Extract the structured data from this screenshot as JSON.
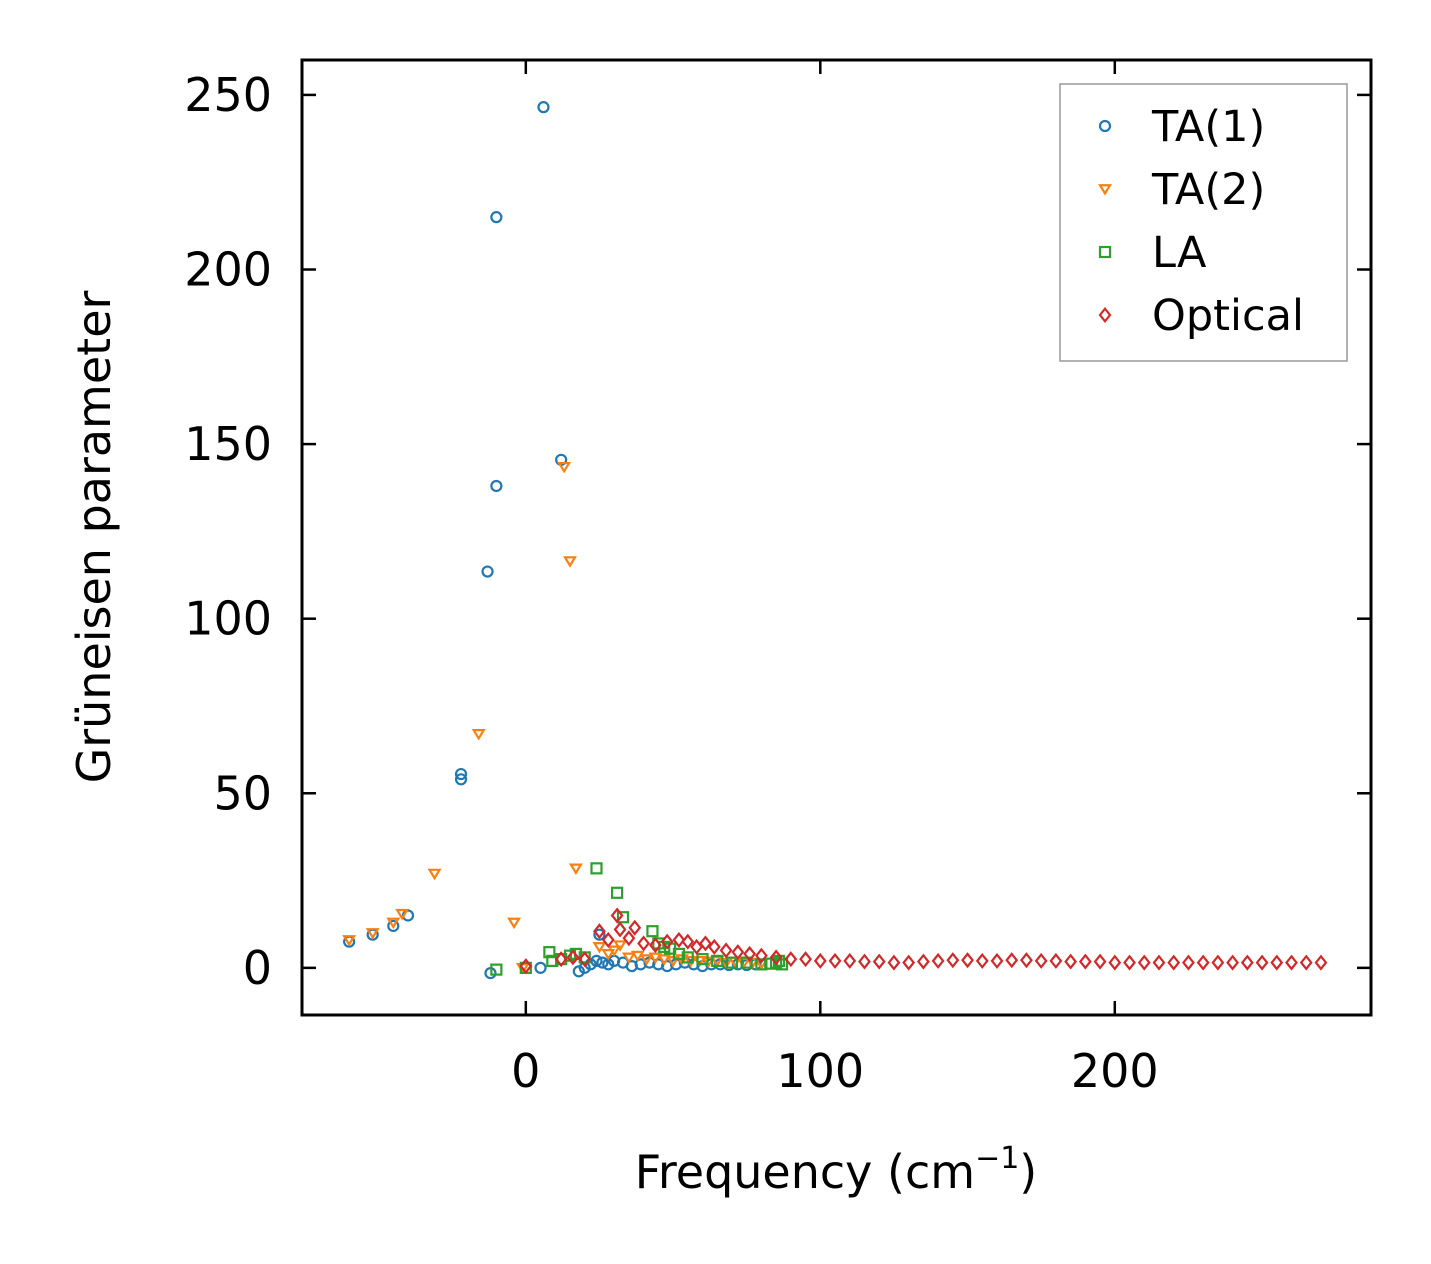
{
  "chart_data": {
    "type": "scatter",
    "xlabel": "Frequency (cm",
    "xlabel_exponent": "−1",
    "xlabel_close": ")",
    "ylabel": "Grüneisen parameter",
    "xlim": [
      -76,
      287
    ],
    "ylim": [
      -13.5,
      260
    ],
    "xticks": [
      0,
      100,
      200
    ],
    "yticks": [
      0,
      50,
      100,
      150,
      200,
      250
    ],
    "legend_position": "top-right",
    "grid": false,
    "series": [
      {
        "name": "TA(1)",
        "color": "#1f77b4",
        "marker": "circle",
        "points": [
          [
            -60,
            7.5
          ],
          [
            -52,
            9.5
          ],
          [
            -45,
            12
          ],
          [
            -40,
            15
          ],
          [
            -22,
            54
          ],
          [
            -22,
            55.5
          ],
          [
            -13,
            113.5
          ],
          [
            -10,
            138
          ],
          [
            -10,
            215
          ],
          [
            5,
            0
          ],
          [
            6,
            246.5
          ],
          [
            12,
            145.5
          ],
          [
            25,
            9.5
          ],
          [
            -12,
            -1.5
          ],
          [
            18,
            -1
          ],
          [
            20,
            0
          ],
          [
            22,
            1
          ],
          [
            24,
            2
          ],
          [
            26,
            1.5
          ],
          [
            28,
            1
          ],
          [
            30,
            2
          ],
          [
            33,
            1.5
          ],
          [
            36,
            0.5
          ],
          [
            39,
            1
          ],
          [
            42,
            1.5
          ],
          [
            45,
            1
          ],
          [
            48,
            0.5
          ],
          [
            51,
            1
          ],
          [
            54,
            1.5
          ],
          [
            57,
            1
          ],
          [
            60,
            0.5
          ],
          [
            63,
            1
          ],
          [
            66,
            1
          ],
          [
            69,
            0.8
          ],
          [
            72,
            1
          ],
          [
            75,
            0.8
          ],
          [
            78,
            1
          ]
        ]
      },
      {
        "name": "TA(2)",
        "color": "#ff7f0e",
        "marker": "triangle-down",
        "points": [
          [
            -60,
            8
          ],
          [
            -52,
            10
          ],
          [
            -45,
            13
          ],
          [
            -42,
            15.5
          ],
          [
            -31,
            27
          ],
          [
            -16,
            67
          ],
          [
            -4,
            13
          ],
          [
            -1,
            0
          ],
          [
            13,
            143.5
          ],
          [
            15,
            116.5
          ],
          [
            17,
            28.5
          ],
          [
            25,
            6
          ],
          [
            28,
            4
          ],
          [
            30,
            5
          ],
          [
            32,
            6.5
          ],
          [
            35,
            3
          ],
          [
            38,
            3.5
          ],
          [
            41,
            2.5
          ],
          [
            44,
            3
          ],
          [
            47,
            2.5
          ],
          [
            50,
            2
          ],
          [
            53,
            2.5
          ],
          [
            56,
            2
          ],
          [
            59,
            2
          ],
          [
            62,
            1.8
          ],
          [
            65,
            2
          ],
          [
            68,
            1.5
          ],
          [
            71,
            1.8
          ],
          [
            74,
            1.5
          ],
          [
            77,
            1.5
          ],
          [
            80,
            1.2
          ]
        ]
      },
      {
        "name": "LA",
        "color": "#2ca02c",
        "marker": "square",
        "points": [
          [
            -10,
            -0.5
          ],
          [
            0,
            0
          ],
          [
            8,
            4.5
          ],
          [
            9,
            2
          ],
          [
            12,
            2.5
          ],
          [
            15,
            3.5
          ],
          [
            17,
            4
          ],
          [
            20,
            3
          ],
          [
            24,
            28.5
          ],
          [
            31,
            21.5
          ],
          [
            33,
            14.5
          ],
          [
            43,
            10.5
          ],
          [
            45,
            7
          ],
          [
            47,
            6
          ],
          [
            49,
            5.5
          ],
          [
            52,
            4
          ],
          [
            55,
            3
          ],
          [
            60,
            2.5
          ],
          [
            65,
            2
          ],
          [
            70,
            1.5
          ],
          [
            75,
            1.5
          ],
          [
            80,
            1
          ],
          [
            83,
            1.2
          ],
          [
            85,
            1.5
          ],
          [
            86,
            2
          ],
          [
            87,
            1
          ]
        ]
      },
      {
        "name": "Optical",
        "color": "#d62728",
        "marker": "diamond",
        "points": [
          [
            0,
            0.5
          ],
          [
            12,
            2.5
          ],
          [
            16,
            3
          ],
          [
            20,
            2.5
          ],
          [
            25,
            10.5
          ],
          [
            28,
            8
          ],
          [
            31,
            15
          ],
          [
            32,
            11
          ],
          [
            35,
            8.5
          ],
          [
            37,
            11.5
          ],
          [
            40,
            7
          ],
          [
            44,
            6.5
          ],
          [
            48,
            7.5
          ],
          [
            52,
            8
          ],
          [
            55,
            7.5
          ],
          [
            58,
            6
          ],
          [
            61,
            7
          ],
          [
            64,
            6
          ],
          [
            68,
            5
          ],
          [
            72,
            4.5
          ],
          [
            76,
            4
          ],
          [
            80,
            3.5
          ],
          [
            85,
            3
          ],
          [
            90,
            2.5
          ],
          [
            95,
            2.5
          ],
          [
            100,
            2
          ],
          [
            105,
            2
          ],
          [
            110,
            2
          ],
          [
            115,
            1.8
          ],
          [
            120,
            1.8
          ],
          [
            125,
            1.5
          ],
          [
            130,
            1.5
          ],
          [
            135,
            1.8
          ],
          [
            140,
            2
          ],
          [
            145,
            2.2
          ],
          [
            150,
            2.2
          ],
          [
            155,
            2
          ],
          [
            160,
            2
          ],
          [
            165,
            2.2
          ],
          [
            170,
            2.2
          ],
          [
            175,
            2
          ],
          [
            180,
            2
          ],
          [
            185,
            1.8
          ],
          [
            190,
            1.8
          ],
          [
            195,
            1.8
          ],
          [
            200,
            1.5
          ],
          [
            205,
            1.5
          ],
          [
            210,
            1.5
          ],
          [
            215,
            1.5
          ],
          [
            220,
            1.5
          ],
          [
            225,
            1.5
          ],
          [
            230,
            1.5
          ],
          [
            235,
            1.5
          ],
          [
            240,
            1.5
          ],
          [
            245,
            1.5
          ],
          [
            250,
            1.5
          ],
          [
            255,
            1.5
          ],
          [
            260,
            1.5
          ],
          [
            265,
            1.5
          ],
          [
            270,
            1.5
          ]
        ]
      }
    ]
  }
}
